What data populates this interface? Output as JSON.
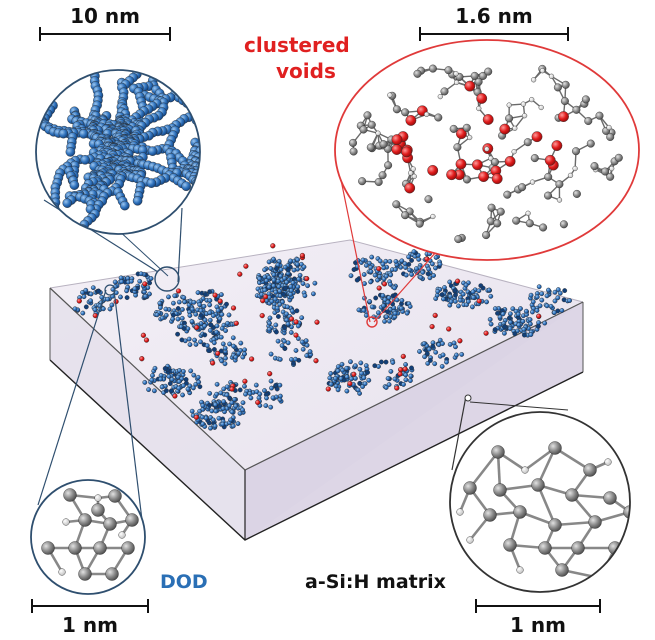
{
  "labels": {
    "scale_dod_cluster": "10 nm",
    "scale_void_cluster": "1.6 nm",
    "scale_dod_atoms": "1 nm",
    "scale_matrix_atoms": "1 nm",
    "clustered_voids_line1": "clustered",
    "clustered_voids_line2": "voids",
    "dod_label": "DOD",
    "matrix_label": "a-Si:H matrix"
  },
  "colors": {
    "dod_blue": "#1f5fa8",
    "dod_blue_light": "#4a8fd0",
    "void_red": "#e01b1b",
    "silicon_gray": "#8a8a8a",
    "hydrogen_white": "#ffffff",
    "void_outline": "#e03a3a",
    "dod_outline": "#2f4f6f",
    "matrix_outline": "#333333",
    "text_dark": "#111111",
    "text_red": "#e02020",
    "text_blue": "#2a6fb5"
  }
}
